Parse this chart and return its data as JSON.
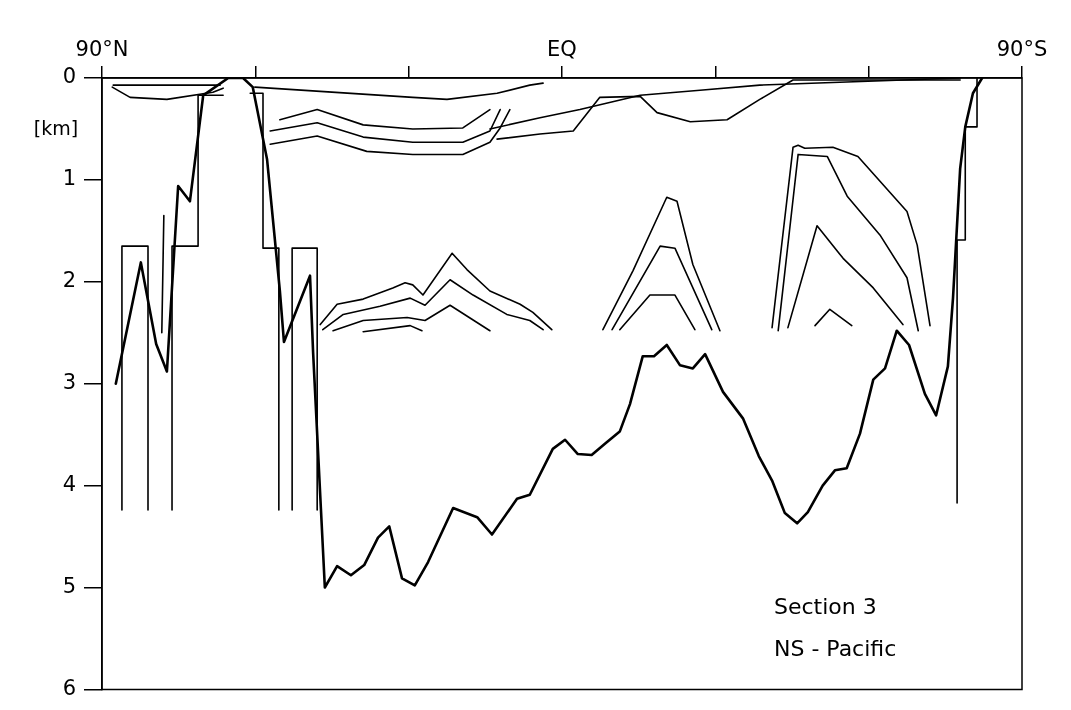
{
  "chart_data": {
    "type": "line",
    "ylabel": "[km]",
    "xlim": [
      90,
      -90
    ],
    "xticks": [
      {
        "value": 90,
        "label": "90°N"
      },
      {
        "value": 60,
        "label": null
      },
      {
        "value": 30,
        "label": null
      },
      {
        "value": 0,
        "label": "EQ"
      },
      {
        "value": -30,
        "label": null
      },
      {
        "value": -60,
        "label": null
      },
      {
        "value": -90,
        "label": "90°S"
      }
    ],
    "ylim": [
      6,
      0
    ],
    "yticks": [
      0,
      1,
      2,
      3,
      4,
      5,
      6
    ],
    "grid": false,
    "legend": false,
    "marker": "none",
    "line_style": "solid",
    "annotations": [
      "Section 3",
      "NS - Pacific"
    ],
    "series": [
      {
        "color": "#000000",
        "x": [
          87.3,
          82.4,
          79.4,
          77.3,
          75.1,
          72.8,
          71.2,
          70.2,
          65.3,
          62.4,
          60.5,
          57.7,
          55.2,
          54.4,
          49.3,
          48.7,
          46.4,
          44.0,
          41.3,
          38.7,
          36.0,
          33.8,
          31.3,
          28.8,
          26.2,
          21.3,
          16.6,
          13.7,
          8.8,
          6.3,
          1.8,
          -0.6,
          -3.1,
          -5.8,
          -8.4,
          -11.3,
          -13.3,
          -15.8,
          -18.0,
          -20.5,
          -23.1,
          -25.6,
          -28.0,
          -31.5,
          -35.4,
          -38.5,
          -41.1,
          -43.6,
          -46.0,
          -48.1,
          -51.0,
          -53.4,
          -55.7,
          -58.3,
          -60.9,
          -63.2,
          -65.5,
          -67.9,
          -71.0,
          -73.2,
          -75.5,
          -76.5,
          -77.9,
          -78.9,
          -80.4,
          -82.2
        ],
        "values": [
          3.0,
          1.81,
          2.61,
          2.88,
          1.06,
          1.21,
          0.57,
          0.17,
          0,
          0,
          0.09,
          0.8,
          2.09,
          2.59,
          1.94,
          2.69,
          5.0,
          4.79,
          4.88,
          4.78,
          4.51,
          4.4,
          4.91,
          4.98,
          4.75,
          4.22,
          4.31,
          4.48,
          4.13,
          4.09,
          3.64,
          3.55,
          3.69,
          3.7,
          3.59,
          3.47,
          3.2,
          2.73,
          2.73,
          2.62,
          2.82,
          2.85,
          2.71,
          3.08,
          3.34,
          3.71,
          3.95,
          4.27,
          4.37,
          4.26,
          4.0,
          3.85,
          3.83,
          3.49,
          2.96,
          2.85,
          2.48,
          2.62,
          3.1,
          3.31,
          2.83,
          2.16,
          0.89,
          0.48,
          0.15,
          0
        ]
      },
      {
        "color": "#000000",
        "x": [
          77.9,
          78.3
        ],
        "values": [
          1.35,
          2.5
        ]
      },
      {
        "color": "#000000",
        "x": [
          86.1,
          86.1,
          81.0,
          81.0
        ],
        "values": [
          4.24,
          1.65,
          1.65,
          4.24
        ]
      },
      {
        "color": "#000000",
        "x": [
          76.3,
          76.3,
          71.2,
          71.2,
          66.3
        ],
        "values": [
          4.24,
          1.65,
          1.65,
          0.17,
          0.17
        ]
      },
      {
        "color": "#000000",
        "x": [
          61.0,
          58.5,
          58.5,
          55.4,
          55.4
        ],
        "values": [
          0.15,
          0.15,
          1.67,
          1.67,
          4.24
        ]
      },
      {
        "color": "#000000",
        "x": [
          52.8,
          52.8,
          47.9,
          47.9
        ],
        "values": [
          4.24,
          1.67,
          1.67,
          4.24
        ]
      },
      {
        "color": "#000000",
        "x": [
          -81.2,
          -81.2,
          -78.9,
          -78.9,
          -77.3,
          -77.3
        ],
        "values": [
          0,
          0.48,
          0.48,
          1.59,
          1.59,
          4.17
        ]
      },
      {
        "color": "#000000",
        "x": [
          47.3,
          44.0,
          38.9,
          33.1,
          30.7,
          29.2,
          27.2,
          21.5,
          18.6,
          14.1,
          8.2,
          5.7,
          2.0
        ],
        "values": [
          2.42,
          2.22,
          2.17,
          2.06,
          2.01,
          2.03,
          2.13,
          1.72,
          1.88,
          2.09,
          2.22,
          2.3,
          2.47
        ]
      },
      {
        "color": "#000000",
        "x": [
          46.8,
          42.8,
          35.6,
          29.7,
          26.8,
          21.9,
          17.4,
          10.8,
          6.3,
          3.7
        ],
        "values": [
          2.47,
          2.32,
          2.24,
          2.16,
          2.23,
          1.98,
          2.13,
          2.32,
          2.38,
          2.47
        ]
      },
      {
        "color": "#000000",
        "x": [
          44.8,
          38.9,
          30.3,
          26.8,
          21.9,
          14.1
        ],
        "values": [
          2.48,
          2.38,
          2.35,
          2.38,
          2.23,
          2.48
        ]
      },
      {
        "color": "#000000",
        "x": [
          38.9,
          29.7,
          27.4
        ],
        "values": [
          2.49,
          2.43,
          2.48
        ]
      },
      {
        "color": "#000000",
        "x": [
          -8.0,
          -13.9,
          -20.5,
          -22.5,
          -25.6,
          -30.9
        ],
        "values": [
          2.47,
          1.89,
          1.17,
          1.21,
          1.83,
          2.48
        ]
      },
      {
        "color": "#000000",
        "x": [
          -9.8,
          -19.2,
          -22.1,
          -29.3
        ],
        "values": [
          2.47,
          1.65,
          1.67,
          2.47
        ]
      },
      {
        "color": "#000000",
        "x": [
          -11.3,
          -17.2,
          -22.1,
          -26.0
        ],
        "values": [
          2.47,
          2.13,
          2.13,
          2.47
        ]
      },
      {
        "color": "#000000",
        "x": [
          -41.1,
          -45.2,
          -46.2,
          -47.5,
          -53.0,
          -57.9,
          -67.5,
          -69.5,
          -72.0
        ],
        "values": [
          2.45,
          0.68,
          0.66,
          0.69,
          0.68,
          0.77,
          1.31,
          1.64,
          2.43
        ]
      },
      {
        "color": "#000000",
        "x": [
          -42.3,
          -46.2,
          -51.9,
          -55.8,
          -62.2,
          -67.5,
          -69.7
        ],
        "values": [
          2.48,
          0.75,
          0.77,
          1.16,
          1.54,
          1.96,
          2.48
        ]
      },
      {
        "color": "#000000",
        "x": [
          -44.2,
          -49.9,
          -55.0,
          -60.9,
          -66.7
        ],
        "values": [
          2.45,
          1.45,
          1.77,
          2.06,
          2.42
        ]
      },
      {
        "color": "#000000",
        "x": [
          -49.5,
          -52.4,
          -56.7
        ],
        "values": [
          2.43,
          2.27,
          2.43
        ]
      },
      {
        "color": "#000000",
        "x": [
          57.1,
          47.9,
          38.2,
          29.2,
          19.4,
          14.1,
          12.1,
          10.2
        ],
        "values": [
          0.65,
          0.57,
          0.72,
          0.75,
          0.75,
          0.63,
          0.49,
          0.31
        ]
      },
      {
        "color": "#000000",
        "x": [
          57.1,
          47.9,
          38.9,
          29.2,
          19.4,
          14.1,
          12.1
        ],
        "values": [
          0.52,
          0.44,
          0.58,
          0.63,
          0.63,
          0.52,
          0.31
        ]
      },
      {
        "color": "#000000",
        "x": [
          55.2,
          47.9,
          38.9,
          29.2,
          19.4,
          14.1
        ],
        "values": [
          0.41,
          0.31,
          0.46,
          0.5,
          0.49,
          0.31
        ]
      },
      {
        "color": "#000000",
        "x": [
          60.1,
          29.2,
          22.5,
          12.7,
          6.3,
          3.7
        ],
        "values": [
          0.09,
          0.19,
          0.21,
          0.15,
          0.07,
          0.05
        ]
      },
      {
        "color": "#000000",
        "x": [
          12.7,
          4.3,
          -2.2,
          -7.4,
          -15.3,
          -18.6,
          -25.1,
          -32.3,
          -38.7,
          -45.2,
          -77.9
        ],
        "values": [
          0.6,
          0.55,
          0.52,
          0.19,
          0.18,
          0.34,
          0.43,
          0.41,
          0.21,
          0.02,
          0.02
        ]
      },
      {
        "color": "#000000",
        "x": [
          14.1,
          4.3,
          -3.5,
          -15.3,
          -27.0,
          -38.7,
          -77.9
        ],
        "values": [
          0.5,
          0.39,
          0.31,
          0.17,
          0.12,
          0.07,
          0
        ]
      },
      {
        "color": "#000000",
        "x": [
          88.0,
          84.5,
          77.3,
          68.3,
          66.3
        ],
        "values": [
          0.09,
          0.19,
          0.21,
          0.14,
          0.1
        ]
      },
      {
        "color": "#000000",
        "x": [
          87.8,
          66.9
        ],
        "values": [
          0.07,
          0.07
        ]
      }
    ]
  }
}
